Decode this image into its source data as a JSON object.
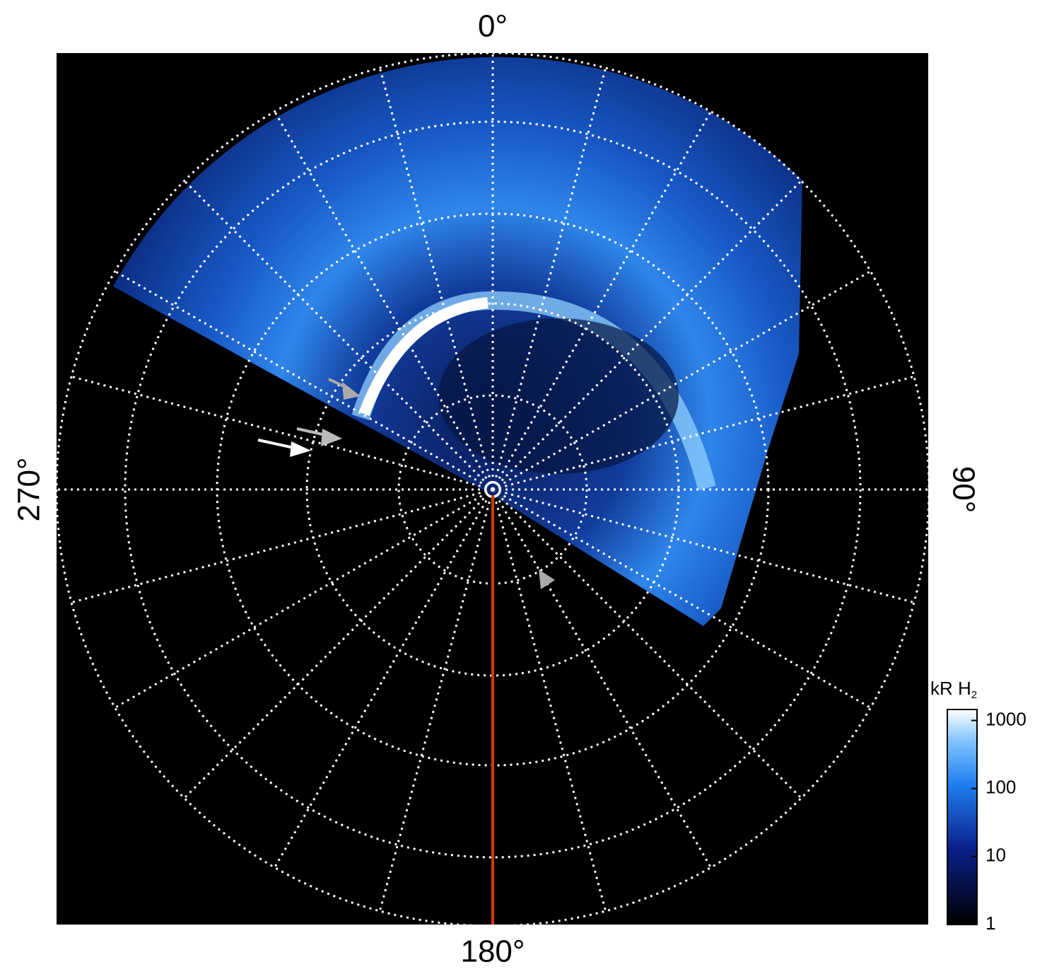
{
  "angle_labels": {
    "top": "0°",
    "right": "90°",
    "bottom": "180°",
    "left": "270°"
  },
  "colorbar": {
    "title": "kR H",
    "title_subscript": "2",
    "scale": "log",
    "lim": [
      1,
      1450
    ],
    "ticks": [
      1,
      10,
      100,
      1000
    ]
  }
}
